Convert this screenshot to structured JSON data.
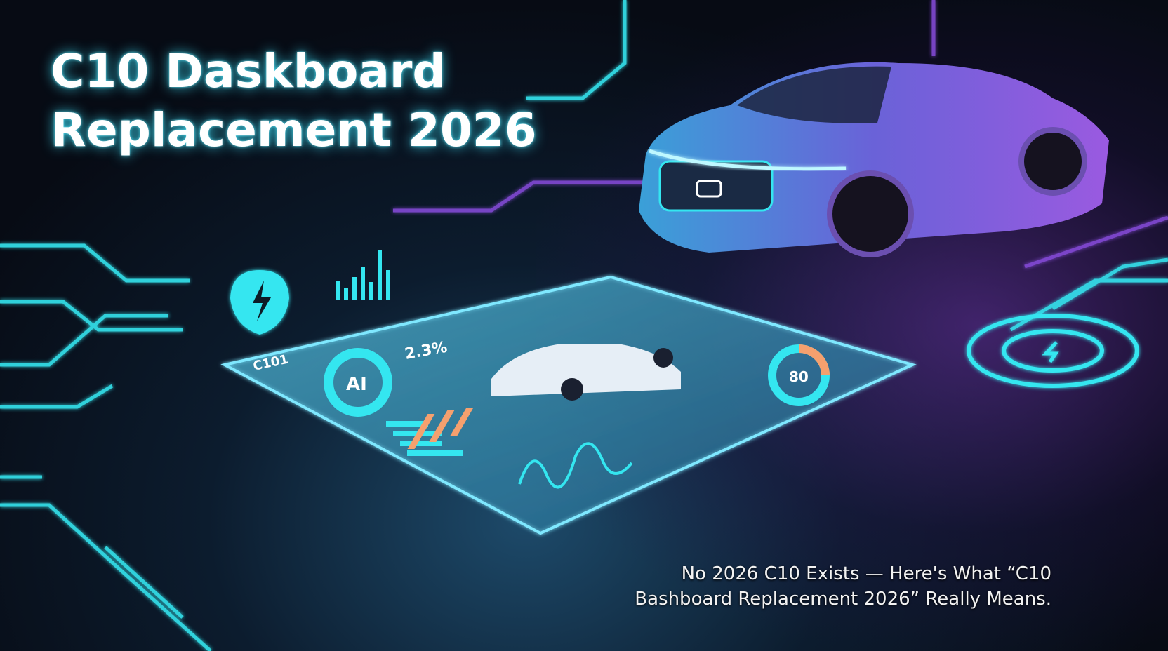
{
  "headline": {
    "line1": "C10 Daskboard",
    "line2": "Replacement 2026"
  },
  "caption": {
    "line1": "No 2026 C10 Exists — Here's What “C10",
    "line2": "Bashboard Replacement 2026” Really Means."
  },
  "dashboard": {
    "label": "C101",
    "center_badge": "AI",
    "metric": "2.3%",
    "gauge_value": "80"
  },
  "colors": {
    "accent_cyan": "#34e6f0",
    "accent_purple": "#8a4de0",
    "bar_orange": "#f5a06e"
  },
  "icons": [
    "lightning-icon",
    "wireless-charging-icon",
    "car-logo-icon"
  ]
}
